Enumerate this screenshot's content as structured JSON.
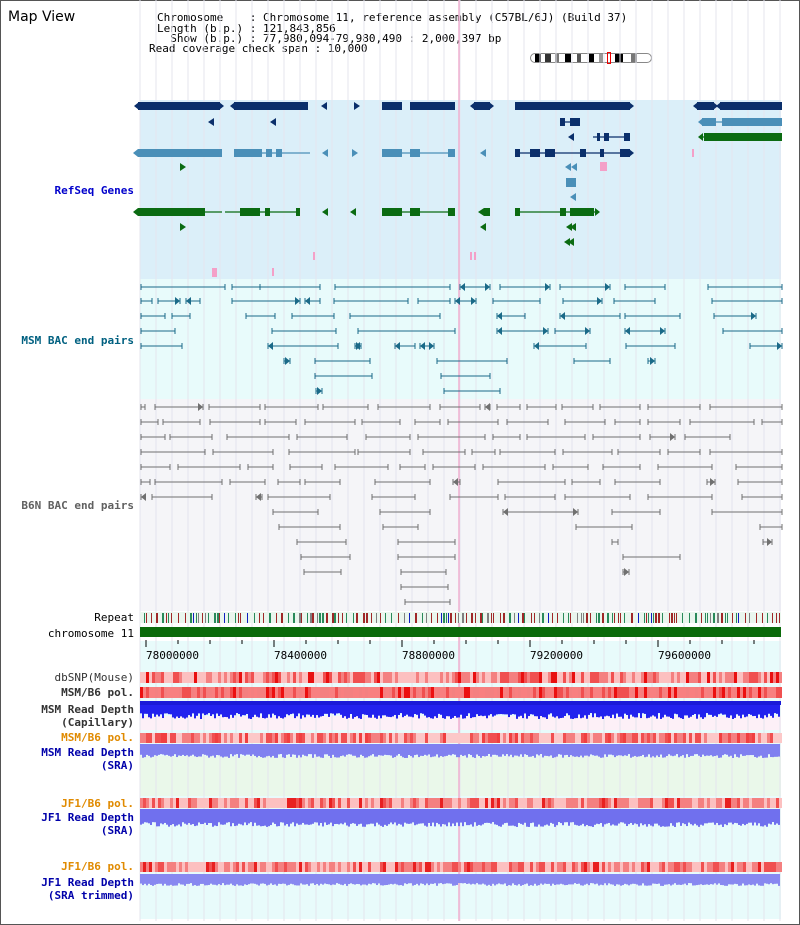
{
  "app": {
    "title": "Map View"
  },
  "header": {
    "lines": [
      "Chromosome    : Chromosome 11, reference assembly (C57BL/6J) (Build 37)",
      "Length (b.p.) : 121,843,856",
      "  Show (b.p.) : 77,980,094-79,980,490 : 2,000,397 bp",
      "Read coverage check span : 10,000"
    ]
  },
  "tracks": {
    "refseq": {
      "label": "RefSeq Genes",
      "color": "#0000cc"
    },
    "msm_bac": {
      "label": "MSM BAC end pairs",
      "color": "#006080"
    },
    "b6n_bac": {
      "label": "B6N BAC end pairs",
      "color": "#606060"
    },
    "repeat": {
      "label": "Repeat"
    },
    "chromosome": {
      "label": "chromosome 11"
    },
    "dbsnp": {
      "label": "dbSNP(Mouse)"
    },
    "msm_b6_pol": {
      "label": "MSM/B6 pol."
    },
    "msm_depth_cap": {
      "label": "MSM Read Depth\n(Capillary)"
    },
    "msm_b6_pol_2": {
      "label": "MSM/B6 pol."
    },
    "msm_depth_sra": {
      "label": "MSM Read Depth\n(SRA)"
    },
    "jf1_b6_pol": {
      "label": "JF1/B6 pol."
    },
    "jf1_depth_sra": {
      "label": "JF1 Read Depth\n(SRA)"
    },
    "jf1_b6_pol_2": {
      "label": "JF1/B6 pol."
    },
    "jf1_depth_trim": {
      "label": "JF1 Read Depth\n(SRA trimmed)"
    }
  },
  "axis": {
    "ticks": [
      "78000000",
      "78400000",
      "78800000",
      "79200000",
      "79600000"
    ]
  },
  "colors": {
    "navy": "#0b2f6b",
    "steel": "#4a8fb8",
    "green": "#0b6b12",
    "pink": "#f4a0c8",
    "refseq_bg": "#dbeff9",
    "msm_bg": "#e8fbfb",
    "b6n_bg": "#f5f5f8",
    "chrom_green": "#0a6a0a",
    "sra_bg": "#eaf8ea"
  }
}
